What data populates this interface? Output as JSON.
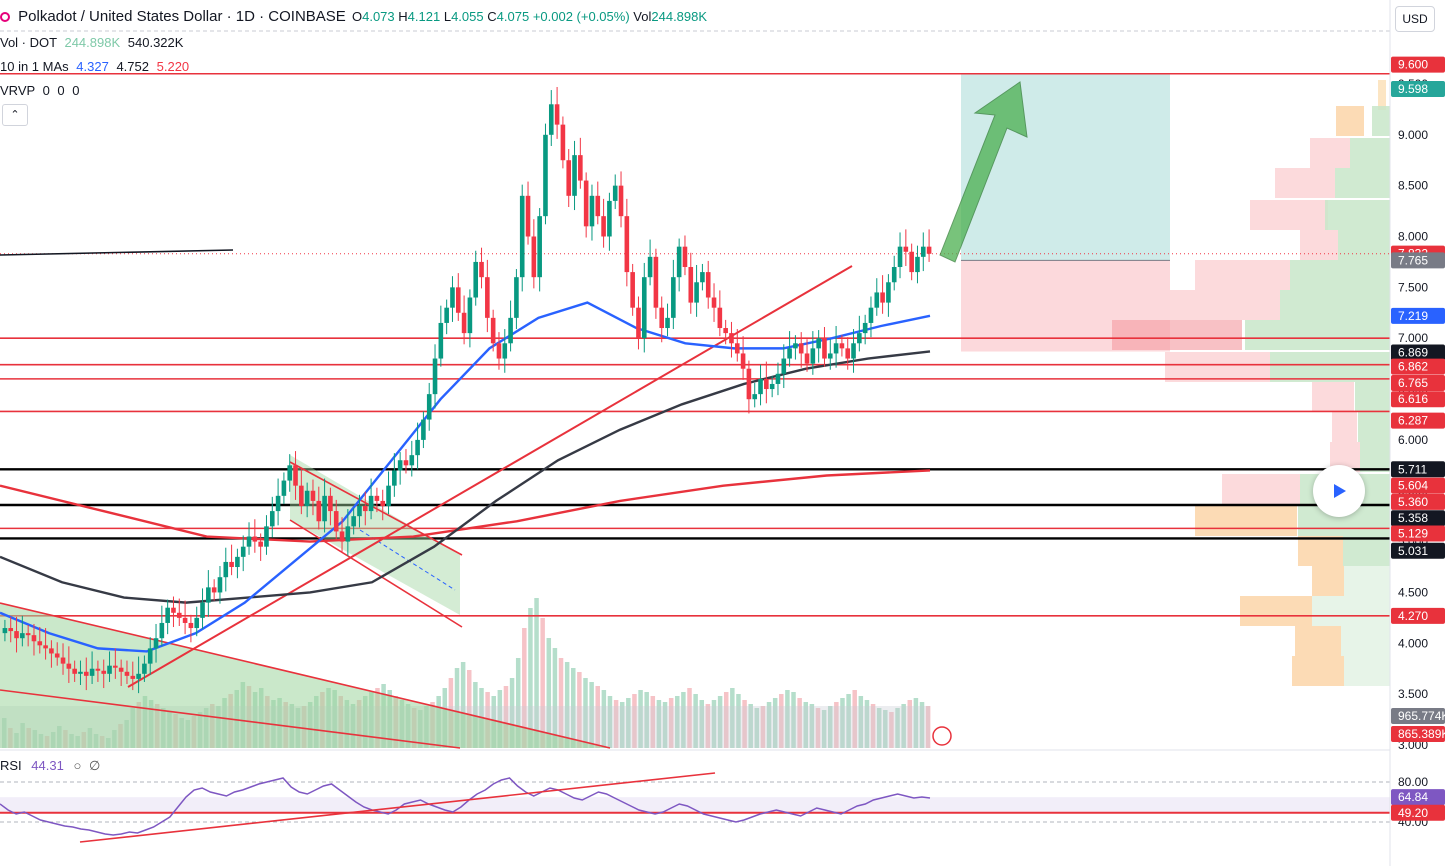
{
  "header": {
    "title": "Polkadot / United States Dollar · 1D · COINBASE",
    "open_label": "O",
    "open": "4.073",
    "high_label": "H",
    "high": "4.121",
    "low_label": "L",
    "low": "4.055",
    "close_label": "C",
    "close": "4.075",
    "change": "+0.002 (+0.05%)",
    "vol_label": "Vol",
    "vol": "244.898K"
  },
  "indicators": {
    "volume": {
      "label": "Vol · DOT",
      "v1": "244.898K",
      "v2": "540.322K"
    },
    "mas": {
      "label": "10 in 1 MAs",
      "v1": "4.327",
      "v2": "4.752",
      "v3": "5.220"
    },
    "vrvp": {
      "label": "VRVP",
      "v1": "0",
      "v2": "0",
      "v3": "0"
    },
    "rsi": {
      "label": "RSI",
      "value": "44.31"
    }
  },
  "toolbar": {
    "currency": "USD",
    "collapse_icon": "chevron-up-icon",
    "play_icon": "play-icon"
  },
  "colors": {
    "up": "#089981",
    "down": "#f23645",
    "ma_fast": "#2962ff",
    "ma_mid": "#363a45",
    "ma_slow": "#f23645",
    "rsi": "#7e57c2",
    "target_zone": "#26a69a",
    "stop_zone": "#f7a1a7"
  },
  "chart_data": {
    "type": "candlestick",
    "title": "Polkadot / United States Dollar · 1D · COINBASE",
    "price_scale": {
      "ticks": [
        "9.500",
        "9.000",
        "8.500",
        "8.000",
        "7.500",
        "7.000",
        "6.500",
        "6.000",
        "5.500",
        "5.000",
        "4.500",
        "4.000",
        "3.500",
        "3.000"
      ],
      "ylim": [
        3.0,
        9.75
      ]
    },
    "price_labels": [
      {
        "text": "9.600",
        "kind": "red"
      },
      {
        "text": "9.598",
        "kind": "green"
      },
      {
        "text": "7.832",
        "kind": "red"
      },
      {
        "text": "7.765",
        "kind": "gray"
      },
      {
        "text": "7.219",
        "kind": "blue"
      },
      {
        "text": "6.869",
        "kind": "black"
      },
      {
        "text": "6.862",
        "kind": "red"
      },
      {
        "text": "6.765",
        "kind": "red"
      },
      {
        "text": "6.616",
        "kind": "red"
      },
      {
        "text": "6.287",
        "kind": "red"
      },
      {
        "text": "5.711",
        "kind": "black"
      },
      {
        "text": "5.604",
        "kind": "red"
      },
      {
        "text": "5.360",
        "kind": "red"
      },
      {
        "text": "5.358",
        "kind": "black"
      },
      {
        "text": "5.129",
        "kind": "red"
      },
      {
        "text": "5.031",
        "kind": "black"
      },
      {
        "text": "4.270",
        "kind": "red"
      },
      {
        "text": "965.774K",
        "kind": "gray"
      },
      {
        "text": "865.389K",
        "kind": "red"
      }
    ],
    "horizontal_levels": {
      "red": [
        9.6,
        7.0,
        6.74,
        6.6,
        6.28,
        5.13,
        4.27
      ],
      "black": [
        5.711,
        5.36,
        5.031
      ]
    },
    "position": {
      "entry": 7.765,
      "target": 9.598,
      "stop": 6.869
    },
    "candles_close": [
      4.15,
      4.12,
      4.05,
      4.1,
      4.08,
      4.02,
      3.98,
      3.95,
      3.9,
      3.86,
      3.8,
      3.75,
      3.7,
      3.72,
      3.68,
      3.75,
      3.73,
      3.7,
      3.78,
      3.76,
      3.72,
      3.68,
      3.65,
      3.7,
      3.8,
      3.95,
      4.05,
      4.2,
      4.35,
      4.3,
      4.25,
      4.2,
      4.15,
      4.25,
      4.4,
      4.55,
      4.5,
      4.65,
      4.8,
      4.75,
      4.85,
      4.95,
      5.05,
      5.0,
      4.95,
      5.15,
      5.3,
      5.45,
      5.6,
      5.75,
      5.55,
      5.35,
      5.5,
      5.4,
      5.2,
      5.45,
      5.3,
      5.1,
      5.0,
      5.15,
      5.25,
      5.35,
      5.3,
      5.45,
      5.4,
      5.35,
      5.55,
      5.7,
      5.8,
      5.75,
      5.85,
      6.0,
      6.2,
      6.45,
      6.8,
      7.15,
      7.3,
      7.5,
      7.25,
      7.05,
      7.4,
      7.75,
      7.6,
      7.2,
      6.95,
      6.8,
      6.95,
      7.2,
      7.6,
      8.4,
      8.0,
      7.6,
      8.2,
      9.0,
      9.3,
      9.1,
      8.75,
      8.4,
      8.8,
      8.55,
      8.1,
      8.4,
      8.2,
      8.0,
      8.35,
      8.5,
      8.2,
      7.65,
      7.3,
      7.0,
      7.6,
      7.8,
      7.3,
      7.1,
      7.2,
      7.6,
      7.9,
      7.7,
      7.35,
      7.55,
      7.65,
      7.4,
      7.3,
      7.1,
      7.05,
      6.95,
      6.85,
      6.7,
      6.4,
      6.45,
      6.6,
      6.5,
      6.55,
      6.65,
      6.8,
      6.9,
      6.95,
      6.85,
      6.75,
      6.9,
      7.0,
      6.8,
      6.85,
      6.95,
      6.9,
      6.8,
      6.95,
      7.05,
      7.15,
      7.3,
      7.45,
      7.35,
      7.55,
      7.7,
      7.9,
      7.85,
      7.65,
      7.8,
      7.9,
      7.83
    ],
    "ma_fast": [
      4.3,
      4.1,
      3.95,
      3.92,
      4.1,
      4.4,
      4.8,
      5.2,
      5.8,
      6.4,
      6.9,
      7.2,
      7.35,
      7.1,
      6.95,
      6.9,
      6.9,
      7.0,
      7.12,
      7.22
    ],
    "ma_mid": [
      4.85,
      4.6,
      4.45,
      4.4,
      4.45,
      4.5,
      4.6,
      4.95,
      5.4,
      5.8,
      6.1,
      6.35,
      6.55,
      6.7,
      6.8,
      6.87
    ],
    "ma_slow": [
      5.55,
      5.3,
      5.05,
      5.0,
      5.05,
      5.2,
      5.4,
      5.55,
      5.65,
      5.7
    ],
    "rsi": {
      "ylim": [
        20,
        95
      ],
      "ticks": [
        "80.00",
        "40.00"
      ],
      "levels": [
        64.84,
        49.2
      ],
      "label_upper": "64.84",
      "label_lower": "49.20",
      "values": [
        58,
        52,
        48,
        50,
        46,
        42,
        40,
        38,
        36,
        35,
        33,
        32,
        30,
        28,
        27,
        28,
        30,
        29,
        32,
        35,
        40,
        45,
        55,
        65,
        72,
        74,
        70,
        68,
        66,
        70,
        72,
        75,
        78,
        80,
        82,
        84,
        75,
        70,
        68,
        72,
        76,
        78,
        72,
        66,
        60,
        55,
        52,
        50,
        48,
        52,
        58,
        60,
        62,
        58,
        55,
        52,
        50,
        55,
        62,
        68,
        72,
        78,
        82,
        84,
        76,
        70,
        66,
        70,
        74,
        72,
        68,
        64,
        62,
        66,
        70,
        68,
        64,
        60,
        56,
        52,
        50,
        48,
        50,
        54,
        58,
        56,
        52,
        48,
        46,
        44,
        42,
        40,
        42,
        45,
        48,
        50,
        52,
        50,
        48,
        46,
        50,
        54,
        52,
        50,
        48,
        52,
        56,
        58,
        62,
        64,
        66,
        68,
        66,
        64,
        65,
        64
      ]
    },
    "volume_bars": [
      30,
      20,
      15,
      25,
      20,
      18,
      14,
      12,
      16,
      22,
      18,
      14,
      12,
      16,
      20,
      14,
      12,
      10,
      18,
      24,
      28,
      40,
      46,
      52,
      48,
      44,
      40,
      36,
      34,
      30,
      28,
      32,
      36,
      40,
      44,
      42,
      50,
      54,
      58,
      66,
      62,
      56,
      60,
      52,
      48,
      50,
      46,
      44,
      40,
      42,
      46,
      52,
      56,
      60,
      58,
      52,
      48,
      44,
      48,
      52,
      56,
      60,
      64,
      58,
      52,
      48,
      44,
      40,
      38,
      42,
      46,
      52,
      60,
      70,
      80,
      86,
      78,
      66,
      60,
      56,
      52,
      58,
      62,
      70,
      90,
      120,
      140,
      150,
      130,
      110,
      100,
      90,
      86,
      80,
      76,
      70,
      66,
      62,
      58,
      52,
      48,
      46,
      50,
      54,
      58,
      56,
      52,
      48,
      46,
      50,
      52,
      56,
      60,
      54,
      48,
      44,
      48,
      52,
      56,
      60,
      54,
      48,
      44,
      40,
      42,
      46,
      50,
      54,
      58,
      56,
      50,
      46,
      44,
      40,
      38,
      42,
      46,
      50,
      54,
      58,
      52,
      48,
      44,
      40,
      38,
      36,
      40,
      44,
      48,
      50,
      46,
      42
    ]
  }
}
